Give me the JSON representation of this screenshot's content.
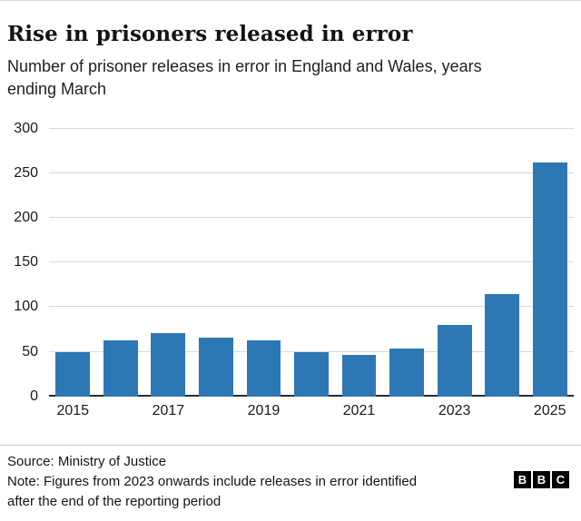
{
  "header": {
    "title": "Rise in prisoners released in error",
    "subtitle": "Number of prisoner releases in error in England and Wales, years ending March"
  },
  "chart_data": {
    "type": "bar",
    "categories": [
      "2015",
      "2016",
      "2017",
      "2018",
      "2019",
      "2020",
      "2021",
      "2022",
      "2023",
      "2024",
      "2025"
    ],
    "values": [
      49,
      63,
      71,
      66,
      63,
      50,
      46,
      54,
      80,
      115,
      262
    ],
    "title": "Rise in prisoners released in error",
    "subtitle": "Number of prisoner releases in error in England and Wales, years ending March",
    "xlabel": "",
    "ylabel": "",
    "ylim": [
      0,
      300
    ],
    "yticks": [
      0,
      50,
      100,
      150,
      200,
      250,
      300
    ],
    "xtick_labels": [
      "2015",
      "2017",
      "2019",
      "2021",
      "2023",
      "2025"
    ],
    "xtick_bar_indices": [
      0,
      2,
      4,
      6,
      8,
      10
    ],
    "grid": true,
    "legend": "none",
    "bar_color": "#2e77b5"
  },
  "footer": {
    "source": "Source: Ministry of Justice",
    "note_lines": [
      "Note: Figures from 2023 onwards include releases in error identified",
      "after the end of the reporting period"
    ],
    "logo_letters": [
      "B",
      "B",
      "C"
    ]
  }
}
